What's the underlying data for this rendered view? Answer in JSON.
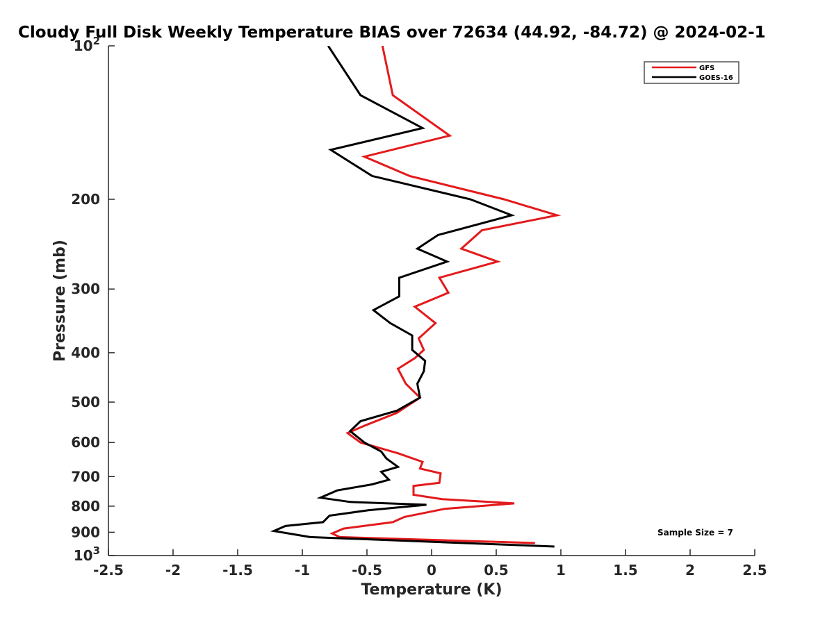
{
  "chart_data": {
    "type": "line",
    "title": "Cloudy Full Disk Weekly Temperature BIAS over 72634 (44.92, -84.72) @ 2024-02-1",
    "xlabel": "Temperature (K)",
    "ylabel": "Pressure (mb)",
    "xlim": [
      -2.5,
      2.5
    ],
    "ylim": [
      100,
      1000
    ],
    "y_scale": "log",
    "y_reversed": true,
    "grid": false,
    "legend_position": "top-right",
    "x_ticks": [
      "-2.5",
      "-2",
      "-1.5",
      "-1",
      "-0.5",
      "0",
      "0.5",
      "1",
      "1.5",
      "2",
      "2.5"
    ],
    "y_ticks": [
      {
        "value": 100,
        "base": "10",
        "exp": "2"
      },
      {
        "value": 200,
        "label": "200"
      },
      {
        "value": 300,
        "label": "300"
      },
      {
        "value": 400,
        "label": "400"
      },
      {
        "value": 500,
        "label": "500"
      },
      {
        "value": 600,
        "label": "600"
      },
      {
        "value": 700,
        "label": "700"
      },
      {
        "value": 800,
        "label": "800"
      },
      {
        "value": 900,
        "label": "900"
      },
      {
        "value": 1000,
        "base": "10",
        "exp": "3"
      }
    ],
    "series": [
      {
        "name": "GFS",
        "color": "#e31a1c",
        "points": [
          [
            -0.38,
            100
          ],
          [
            -0.3,
            125
          ],
          [
            0.14,
            150
          ],
          [
            -0.52,
            165
          ],
          [
            -0.17,
            180
          ],
          [
            0.56,
            200
          ],
          [
            0.97,
            215
          ],
          [
            0.39,
            230
          ],
          [
            0.23,
            250
          ],
          [
            0.51,
            265
          ],
          [
            0.06,
            285
          ],
          [
            0.13,
            305
          ],
          [
            -0.13,
            325
          ],
          [
            0.03,
            350
          ],
          [
            -0.1,
            375
          ],
          [
            -0.06,
            395
          ],
          [
            -0.13,
            410
          ],
          [
            -0.26,
            430
          ],
          [
            -0.2,
            460
          ],
          [
            -0.09,
            490
          ],
          [
            -0.27,
            525
          ],
          [
            -0.51,
            555
          ],
          [
            -0.65,
            575
          ],
          [
            -0.55,
            600
          ],
          [
            -0.26,
            630
          ],
          [
            -0.07,
            655
          ],
          [
            -0.09,
            675
          ],
          [
            0.07,
            690
          ],
          [
            0.06,
            720
          ],
          [
            -0.14,
            730
          ],
          [
            -0.14,
            760
          ],
          [
            0.08,
            775
          ],
          [
            0.64,
            790
          ],
          [
            0.1,
            810
          ],
          [
            -0.21,
            840
          ],
          [
            -0.3,
            860
          ],
          [
            -0.68,
            885
          ],
          [
            -0.77,
            905
          ],
          [
            -0.71,
            920
          ],
          [
            0.8,
            945
          ]
        ]
      },
      {
        "name": "GOES-16",
        "color": "#000000",
        "points": [
          [
            -0.8,
            100
          ],
          [
            -0.55,
            125
          ],
          [
            -0.07,
            145
          ],
          [
            -0.78,
            160
          ],
          [
            -0.46,
            180
          ],
          [
            0.3,
            200
          ],
          [
            0.62,
            215
          ],
          [
            0.05,
            235
          ],
          [
            -0.11,
            250
          ],
          [
            0.12,
            265
          ],
          [
            -0.25,
            285
          ],
          [
            -0.25,
            310
          ],
          [
            -0.45,
            330
          ],
          [
            -0.32,
            350
          ],
          [
            -0.15,
            370
          ],
          [
            -0.15,
            395
          ],
          [
            -0.05,
            415
          ],
          [
            -0.06,
            435
          ],
          [
            -0.11,
            460
          ],
          [
            -0.09,
            490
          ],
          [
            -0.27,
            520
          ],
          [
            -0.55,
            545
          ],
          [
            -0.63,
            570
          ],
          [
            -0.52,
            600
          ],
          [
            -0.39,
            625
          ],
          [
            -0.35,
            645
          ],
          [
            -0.26,
            670
          ],
          [
            -0.39,
            685
          ],
          [
            -0.33,
            710
          ],
          [
            -0.46,
            725
          ],
          [
            -0.73,
            745
          ],
          [
            -0.86,
            770
          ],
          [
            -0.63,
            785
          ],
          [
            -0.04,
            795
          ],
          [
            -0.49,
            815
          ],
          [
            -0.79,
            835
          ],
          [
            -0.84,
            860
          ],
          [
            -1.13,
            875
          ],
          [
            -1.22,
            895
          ],
          [
            -0.94,
            920
          ],
          [
            0.95,
            960
          ]
        ]
      }
    ],
    "annotation": "Sample Size = 7"
  }
}
